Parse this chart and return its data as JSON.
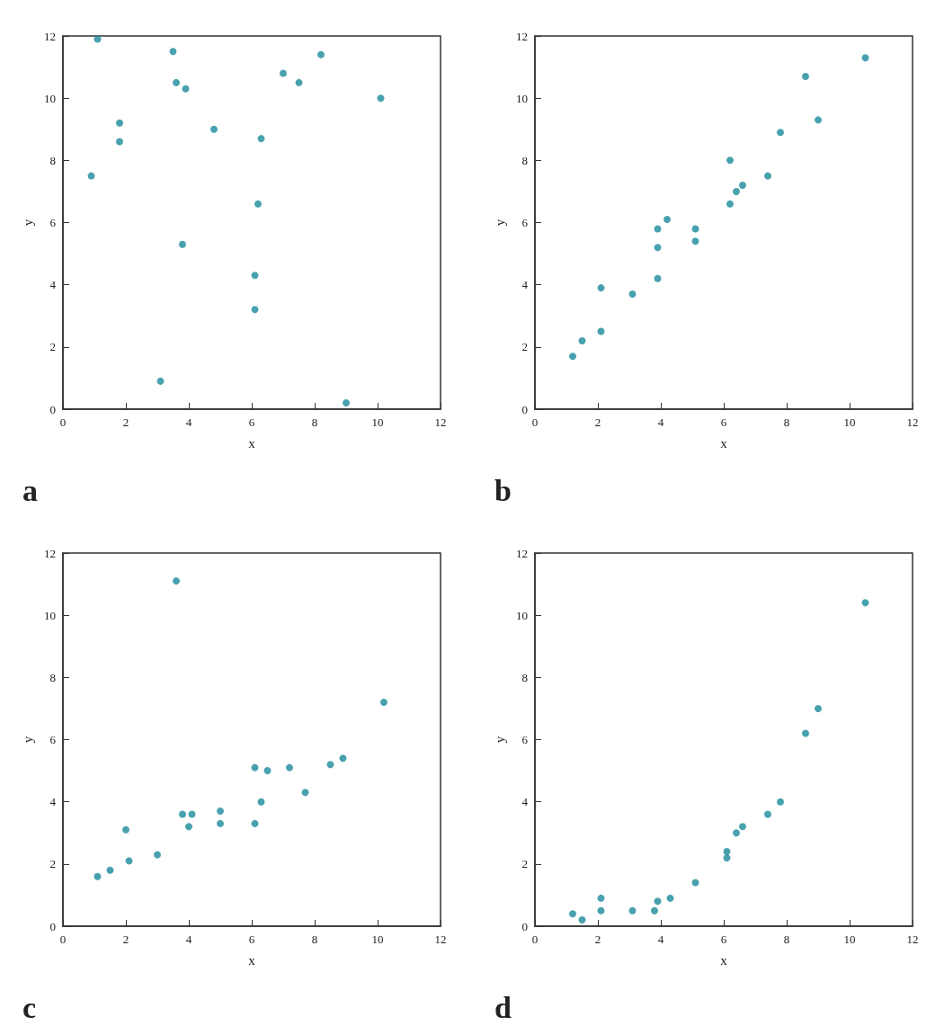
{
  "chart_data": [
    {
      "type": "scatter",
      "title": "a",
      "xlabel": "x",
      "ylabel": "y",
      "color": "#1a8a9a",
      "marker": "circle",
      "xlim": [
        0,
        12
      ],
      "ylim": [
        0,
        12
      ],
      "xticks": [
        0,
        2,
        4,
        6,
        8,
        10,
        12
      ],
      "yticks": [
        0,
        2,
        4,
        6,
        8,
        10,
        12
      ],
      "x": [
        0.9,
        1.1,
        1.8,
        1.8,
        3.1,
        3.8,
        3.9,
        3.6,
        3.5,
        4.8,
        6.1,
        6.1,
        6.2,
        6.3,
        7.0,
        7.5,
        8.2,
        9.0,
        10.1
      ],
      "values": [
        7.5,
        11.9,
        8.6,
        9.2,
        0.9,
        5.3,
        10.3,
        10.5,
        11.5,
        9.0,
        3.2,
        4.3,
        6.6,
        8.7,
        10.8,
        10.5,
        11.4,
        0.2,
        10.0
      ]
    },
    {
      "type": "scatter",
      "title": "b",
      "xlabel": "x",
      "ylabel": "y",
      "color": "#1a8a9a",
      "marker": "circle",
      "xlim": [
        0,
        12
      ],
      "ylim": [
        0,
        12
      ],
      "xticks": [
        0,
        2,
        4,
        6,
        8,
        10,
        12
      ],
      "yticks": [
        0,
        2,
        4,
        6,
        8,
        10,
        12
      ],
      "x": [
        1.2,
        1.5,
        2.1,
        2.1,
        3.1,
        3.9,
        3.9,
        3.9,
        4.2,
        5.1,
        5.1,
        6.2,
        6.2,
        6.4,
        6.6,
        7.4,
        7.8,
        8.6,
        9.0,
        10.5
      ],
      "values": [
        1.7,
        2.2,
        2.5,
        3.9,
        3.7,
        4.2,
        5.2,
        5.8,
        6.1,
        5.4,
        5.8,
        6.6,
        8.0,
        7.0,
        7.2,
        7.5,
        8.9,
        10.7,
        9.3,
        11.3
      ]
    },
    {
      "type": "scatter",
      "title": "c",
      "xlabel": "x",
      "ylabel": "y",
      "color": "#1a8a9a",
      "marker": "circle",
      "xlim": [
        0,
        12
      ],
      "ylim": [
        0,
        12
      ],
      "xticks": [
        0,
        2,
        4,
        6,
        8,
        10,
        12
      ],
      "yticks": [
        0,
        2,
        4,
        6,
        8,
        10,
        12
      ],
      "x": [
        1.1,
        1.5,
        2.1,
        2.0,
        3.0,
        3.6,
        4.0,
        3.8,
        4.1,
        5.0,
        5.0,
        6.1,
        6.3,
        6.1,
        6.5,
        7.2,
        7.7,
        8.5,
        8.9,
        10.2
      ],
      "values": [
        1.6,
        1.8,
        2.1,
        3.1,
        2.3,
        11.1,
        3.2,
        3.6,
        3.6,
        3.3,
        3.7,
        3.3,
        4.0,
        5.1,
        5.0,
        5.1,
        4.3,
        5.2,
        5.4,
        7.2
      ]
    },
    {
      "type": "scatter",
      "title": "d",
      "xlabel": "x",
      "ylabel": "y",
      "color": "#1a8a9a",
      "marker": "circle",
      "xlim": [
        0,
        12
      ],
      "ylim": [
        0,
        12
      ],
      "xticks": [
        0,
        2,
        4,
        6,
        8,
        10,
        12
      ],
      "yticks": [
        0,
        2,
        4,
        6,
        8,
        10,
        12
      ],
      "x": [
        1.2,
        1.5,
        2.1,
        2.1,
        3.1,
        3.8,
        3.9,
        4.3,
        5.1,
        6.1,
        6.1,
        6.4,
        6.6,
        7.4,
        7.8,
        8.6,
        9.0,
        10.5
      ],
      "values": [
        0.4,
        0.2,
        0.5,
        0.9,
        0.5,
        0.5,
        0.8,
        0.9,
        1.4,
        2.2,
        2.4,
        3.0,
        3.2,
        3.6,
        4.0,
        6.2,
        7.0,
        10.4
      ]
    }
  ]
}
